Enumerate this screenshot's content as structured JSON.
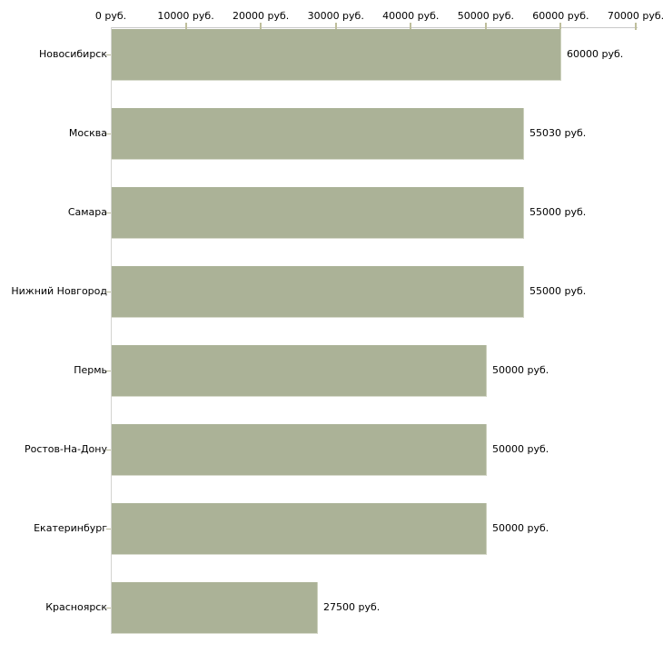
{
  "chart_data": {
    "type": "bar",
    "orientation": "horizontal",
    "title": "",
    "xlabel": "",
    "ylabel": "",
    "categories": [
      "Новосибирск",
      "Москва",
      "Самара",
      "Нижний Новгород",
      "Пермь",
      "Ростов-На-Дону",
      "Екатеринбург",
      "Красноярск"
    ],
    "values": [
      60000,
      55030,
      55000,
      55000,
      50000,
      50000,
      50000,
      27500
    ],
    "value_labels": [
      "60000 руб.",
      "55030 руб.",
      "55000 руб.",
      "55000 руб.",
      "50000 руб.",
      "50000 руб.",
      "50000 руб.",
      "27500 руб."
    ],
    "x_axis": {
      "position": "top",
      "tick_values": [
        0,
        10000,
        20000,
        30000,
        40000,
        50000,
        60000,
        70000
      ],
      "tick_labels": [
        "0 руб.",
        "10000 руб.",
        "20000 руб.",
        "30000 руб.",
        "40000 руб.",
        "50000 руб.",
        "60000 руб.",
        "70000 руб."
      ],
      "xlim": [
        0,
        70000
      ],
      "unit": "руб."
    },
    "grid": false,
    "legend": false,
    "colors": {
      "bar_fill": "#abb297",
      "axis_line": "#c9c9c9",
      "tick_mark": "#bfbf9c",
      "text": "#000000",
      "background": "#ffffff"
    }
  }
}
